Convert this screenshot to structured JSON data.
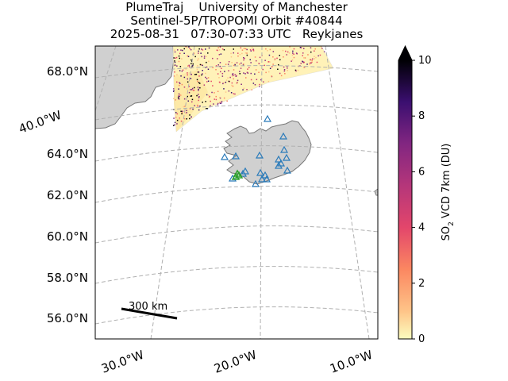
{
  "header": {
    "line1": "PlumeTraj    University of Manchester",
    "line2": "Sentinel-5P/TROPOMI Orbit #40844",
    "line3": "2025-08-31   07:30-07:33 UTC   Reykjanes"
  },
  "map": {
    "lat_labels": [
      "68.0°N",
      "64.0°N",
      "62.0°N",
      "60.0°N",
      "58.0°N",
      "56.0°N"
    ],
    "lon_labels": [
      "40.0°W",
      "30.0°W",
      "20.0°W",
      "10.0°W"
    ],
    "scale_bar_label": "300 km",
    "land_color": "#d0d0d0",
    "coast_color": "#777777",
    "grid_color": "#b0b0b0",
    "station_marker_color": "#2b7bba",
    "vent_marker_color": "#2ca02c"
  },
  "colorbar": {
    "label_main": "SO",
    "label_sub": "2",
    "label_rest": " VCD 7km (DU)",
    "ticks": [
      "0",
      "2",
      "4",
      "6",
      "8",
      "10"
    ],
    "min": 0,
    "max": 10,
    "colormap": "magma_r"
  }
}
